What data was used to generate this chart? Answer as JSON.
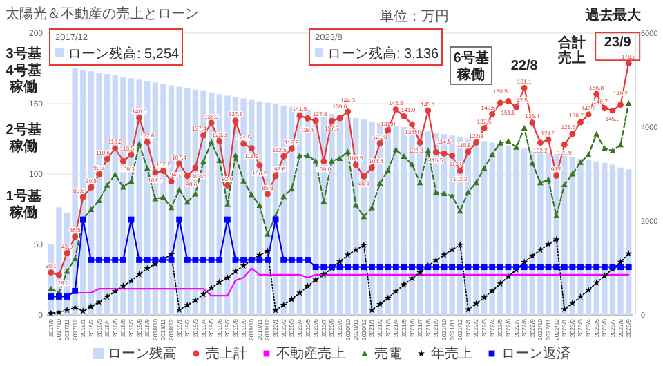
{
  "chart_data": {
    "type": "line",
    "title": "太陽光＆不動産の売上とローン",
    "subtitle": "単位：万円",
    "categories": [
      "2017/9",
      "2017/10",
      "2017/11",
      "2017/12",
      "2018/1",
      "2018/2",
      "2018/3",
      "2018/4",
      "2018/5",
      "2018/6",
      "2018/7",
      "2018/8",
      "2018/9",
      "2018/10",
      "2018/11",
      "2018/12",
      "2019/1",
      "2019/2",
      "2019/3",
      "2019/4",
      "2019/5",
      "2019/6",
      "2019/7",
      "2019/8",
      "2019/9",
      "2019/10",
      "2019/11",
      "2019/12",
      "2020/1",
      "2020/2",
      "2020/3",
      "2020/4",
      "2020/5",
      "2020/6",
      "2020/7",
      "2020/8",
      "2020/9",
      "2020/10",
      "2020/11",
      "2020/12",
      "2021/1",
      "2021/2",
      "2021/3",
      "2021/4",
      "2021/5",
      "2021/6",
      "2021/7",
      "2021/8",
      "2021/9",
      "2021/10",
      "2021/11",
      "2021/12",
      "2022/1",
      "2022/2",
      "2022/3",
      "2022/4",
      "2022/5",
      "2022/6",
      "2022/7",
      "2022/8",
      "2022/9",
      "2022/10",
      "2022/11",
      "2022/12",
      "2023/1",
      "2023/2",
      "2023/3",
      "2023/4",
      "2023/5",
      "2023/6",
      "2023/7",
      "2023/8",
      "2023/9"
    ],
    "series": [
      {
        "name": "ローン残高",
        "type": "bar",
        "axis": "y2",
        "color": "#c9daf8",
        "values": [
          1500,
          2290,
          2180,
          5254,
          5220,
          5190,
          5160,
          5130,
          5100,
          5070,
          5040,
          5010,
          4980,
          4950,
          4920,
          4890,
          4860,
          4830,
          4800,
          4770,
          4740,
          4700,
          4670,
          4640,
          4610,
          4580,
          4550,
          4520,
          4490,
          4460,
          4430,
          4400,
          4370,
          4340,
          4310,
          4280,
          4250,
          4220,
          4190,
          4160,
          4120,
          4090,
          4060,
          4030,
          4000,
          3970,
          3940,
          3910,
          3880,
          3850,
          3820,
          3790,
          3760,
          3730,
          3700,
          3670,
          3640,
          3610,
          3580,
          3540,
          3510,
          3480,
          3450,
          3420,
          3390,
          3360,
          3330,
          3300,
          3270,
          3240,
          3200,
          3136,
          3100
        ]
      },
      {
        "name": "売上計",
        "color": "#e53935",
        "marker": "circle",
        "line_style": "solid",
        "values": [
          30.1,
          28.2,
          43.9,
          55.5,
          83.6,
          90.5,
          99.7,
          110.6,
          118.2,
          109.3,
          113.5,
          140.0,
          122.6,
          101.0,
          102.2,
          94.7,
          107.4,
          98.6,
          104.4,
          127.4,
          136.3,
          123.3,
          92.0,
          137.8,
          121.5,
          118.3,
          106.2,
          85.8,
          98.6,
          112.5,
          117.9,
          141.5,
          139.5,
          137.8,
          109.0,
          137.7,
          139.6,
          144.3,
          106.5,
          98.3,
          104.5,
          121.8,
          131.0,
          145.8,
          141.0,
          135.4,
          122.3,
          145.1,
          115.5,
          114.5,
          113.0,
          102.2,
          115.8,
          122.3,
          132.5,
          142.5,
          150.5,
          151.8,
          147.5,
          161.1,
          136.4,
          122.2,
          124.5,
          98.8,
          120.9,
          128.5,
          136.7,
          142.2,
          156.8,
          146.7,
          145.0,
          149.2,
          178.8
        ],
        "value_labels": [
          "30.1",
          "28.2",
          "43.9",
          "55.5",
          "83.6",
          "90.5",
          "99.7",
          "110.6",
          "118.2",
          "109.3",
          "113.5",
          "140.0",
          "122.6",
          "101.0",
          "102.2",
          "94.7",
          "107.4",
          "98.6",
          "104.4",
          "127.4",
          "136.3",
          "123.3",
          "92.0",
          "137.8",
          "121.5",
          "118.3",
          "106.2",
          "85.8",
          "98.6",
          "112.5",
          "117.9",
          "141.5",
          "139.5",
          "137.8",
          "109.0",
          "137.7",
          "139.6",
          "144.3",
          "106.5",
          "98.3",
          "104.5",
          "121.8",
          "131.0",
          "145.8",
          "141.0",
          "135.4",
          "122.3",
          "145.1",
          "115.5",
          "114.5",
          "113.0",
          "102.2",
          "115.8",
          "122.3",
          "132.5",
          "142.5",
          "150.5",
          "151.8",
          "147.5",
          "161.1",
          "136.4",
          "122.2",
          "124.5",
          "98.8",
          "120.9",
          "128.5",
          "136.7",
          "142.2",
          "156.8",
          "146.7",
          "145.0",
          "149.2",
          "178.8"
        ]
      },
      {
        "name": "不動産売上",
        "color": "#ff00ff",
        "marker": "none",
        "line_style": "solid",
        "values": [
          null,
          null,
          null,
          15.7,
          15.7,
          15.7,
          18.6,
          18.6,
          18.6,
          18.6,
          18.6,
          18.6,
          18.6,
          18.6,
          18.6,
          18.6,
          18.6,
          18.6,
          18.6,
          18.6,
          13.7,
          13.7,
          13.7,
          24.5,
          26.5,
          33.0,
          28.5,
          28.5,
          28.5,
          28.5,
          28.5,
          28.5,
          26.5,
          28.5,
          28.5,
          28.5,
          28.5,
          28.5,
          28.5,
          28.5,
          28.5,
          28.5,
          28.5,
          28.5,
          28.5,
          28.5,
          28.5,
          28.5,
          28.5,
          28.5,
          28.5,
          28.5,
          28.5,
          28.5,
          28.5,
          28.5,
          28.5,
          28.5,
          28.5,
          28.5,
          28.5,
          28.5,
          28.5,
          28.5,
          28.5,
          28.5,
          28.5,
          28.5,
          28.5,
          28.5,
          28.5,
          28.5,
          28.5
        ]
      },
      {
        "name": "売電",
        "color": "#38761d",
        "marker": "triangle",
        "line_style": "dashed",
        "values": [
          18.6,
          15.7,
          30.9,
          39.8,
          67.9,
          74.8,
          81.1,
          92.0,
          99.6,
          90.7,
          94.9,
          121.4,
          104.0,
          82.4,
          83.6,
          76.1,
          88.8,
          80.0,
          85.8,
          108.8,
          122.6,
          109.6,
          78.3,
          113.3,
          95.0,
          85.3,
          77.7,
          57.3,
          70.1,
          84.0,
          89.4,
          113.0,
          113.0,
          109.3,
          80.5,
          109.2,
          111.1,
          115.8,
          78.0,
          69.8,
          76.0,
          93.3,
          102.5,
          117.3,
          112.5,
          106.9,
          93.8,
          116.6,
          87.0,
          86.0,
          84.5,
          73.7,
          87.3,
          93.8,
          104.0,
          114.0,
          122.0,
          123.3,
          119.0,
          132.6,
          107.9,
          93.7,
          96.0,
          70.3,
          92.4,
          100.0,
          108.2,
          113.7,
          128.3,
          118.2,
          116.5,
          120.7,
          150.3
        ]
      },
      {
        "name": "年売上",
        "axis": "y2",
        "color": "#000000",
        "marker": "star",
        "line_style": "dotted",
        "values": [
          30.1,
          58.3,
          102.2,
          157.7,
          83.6,
          174.1,
          273.8,
          384.4,
          502.6,
          611.9,
          725.4,
          865.4,
          988.0,
          1089.0,
          1191.2,
          1285.9,
          107.4,
          206.0,
          310.4,
          437.8,
          574.1,
          697.4,
          789.4,
          927.2,
          1048.7,
          1167.0,
          1273.2,
          1359.0,
          98.6,
          211.1,
          329.0,
          470.5,
          610.0,
          747.8,
          856.8,
          994.5,
          1134.1,
          1278.4,
          1384.9,
          1483.2,
          104.5,
          226.3,
          357.3,
          503.1,
          644.1,
          779.5,
          901.8,
          1046.9,
          1162.4,
          1276.9,
          1389.9,
          1492.1,
          115.8,
          238.1,
          370.6,
          513.1,
          663.6,
          815.4,
          962.9,
          1124.0,
          1260.4,
          1382.6,
          1507.1,
          1605.9,
          120.9,
          249.4,
          386.1,
          528.3,
          685.1,
          831.8,
          976.8,
          1126.0,
          1304.8
        ]
      },
      {
        "name": "ローン返済",
        "color": "#0000ff",
        "marker": "square",
        "line_style": "solid",
        "values": [
          13.0,
          13.0,
          13.0,
          17.0,
          67.6,
          39.0,
          39.0,
          39.0,
          39.0,
          39.0,
          67.6,
          39.0,
          39.0,
          39.0,
          39.0,
          39.0,
          67.6,
          39.0,
          39.0,
          39.0,
          39.0,
          39.0,
          67.6,
          39.0,
          39.0,
          39.0,
          39.0,
          39.0,
          67.6,
          39.0,
          39.0,
          39.0,
          39.0,
          34.0,
          34.0,
          34.0,
          34.0,
          34.0,
          34.0,
          34.0,
          34.0,
          34.0,
          34.0,
          34.0,
          34.0,
          34.0,
          34.0,
          34.0,
          34.0,
          34.0,
          34.0,
          34.0,
          34.0,
          34.0,
          34.0,
          34.0,
          34.0,
          34.0,
          34.0,
          34.0,
          34.0,
          34.0,
          34.0,
          34.0,
          34.0,
          34.0,
          34.0,
          34.0,
          34.0,
          34.0,
          34.0,
          34.0,
          34.0
        ]
      }
    ],
    "ylim": [
      0,
      200
    ],
    "yticks": [
      0,
      50,
      100,
      150,
      200
    ],
    "y2lim": [
      0,
      6000
    ],
    "y2ticks": [
      0,
      2000,
      4000,
      6000
    ],
    "grid": "y",
    "legend": "bottom",
    "annotations": [
      "1号基稼働",
      "2号基稼働",
      "3号基4号基稼働",
      "6号基稼働",
      {
        "text": "22/8",
        "x": "2022/8",
        "y": 161.1
      },
      "合計売上",
      "過去最大",
      {
        "text": "23/9",
        "x": "2023/9",
        "y": 178.8
      },
      "2017/12",
      "ローン残高: 5,254",
      "2023/8",
      "ローン残高: 3,136"
    ]
  }
}
